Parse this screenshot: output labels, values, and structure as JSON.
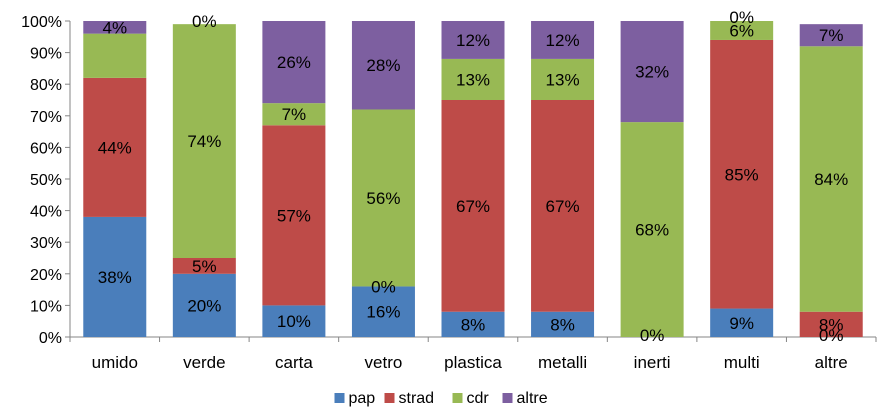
{
  "chart_data": {
    "type": "bar",
    "stacked": true,
    "categories": [
      "umido",
      "verde",
      "carta",
      "vetro",
      "plastica",
      "metalli",
      "inerti",
      "multi",
      "altre"
    ],
    "series": [
      {
        "name": "pap",
        "color": "#4a7ebb",
        "values": [
          38,
          20,
          10,
          16,
          8,
          8,
          0,
          9,
          0
        ]
      },
      {
        "name": "strad",
        "color": "#be4b48",
        "values": [
          44,
          5,
          57,
          0,
          67,
          67,
          0,
          85,
          8
        ]
      },
      {
        "name": "cdr",
        "color": "#98b954",
        "values": [
          14,
          74,
          7,
          56,
          13,
          13,
          68,
          6,
          84
        ]
      },
      {
        "name": "altre",
        "color": "#7d5fa0",
        "values": [
          4,
          0,
          26,
          28,
          12,
          12,
          32,
          0,
          7
        ]
      }
    ],
    "data_labels": [
      [
        "38%",
        "44%",
        "",
        "4%"
      ],
      [
        "20%",
        "5%",
        "74%",
        "0%"
      ],
      [
        "10%",
        "57%",
        "7%",
        "26%"
      ],
      [
        "16%",
        "0%",
        "56%",
        "28%"
      ],
      [
        "8%",
        "67%",
        "13%",
        "12%"
      ],
      [
        "8%",
        "67%",
        "13%",
        "12%"
      ],
      [
        "0%",
        "",
        "68%",
        "32%"
      ],
      [
        "9%",
        "85%",
        "6%",
        "0%"
      ],
      [
        "0%",
        "8%",
        "84%",
        "7%"
      ]
    ],
    "yticks": [
      "0%",
      "10%",
      "20%",
      "30%",
      "40%",
      "50%",
      "60%",
      "70%",
      "80%",
      "90%",
      "100%"
    ],
    "ylim": [
      0,
      100
    ],
    "legend_position": "bottom",
    "grid": false
  }
}
